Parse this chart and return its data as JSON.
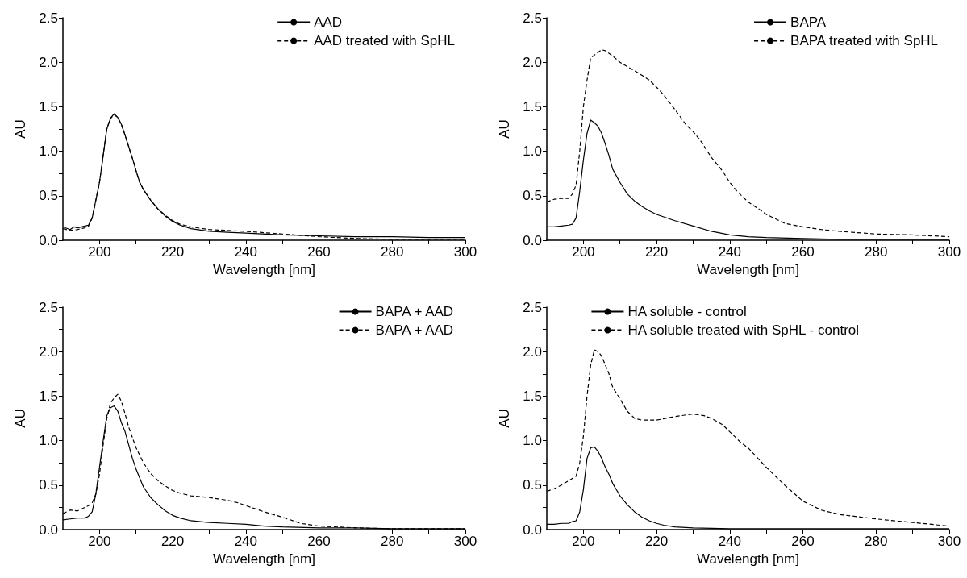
{
  "chart_data": [
    {
      "type": "line",
      "xlabel": "Wavelength [nm]",
      "ylabel": "AU",
      "xlim": [
        190,
        300
      ],
      "ylim": [
        0,
        2.5
      ],
      "xticks": [
        200,
        {
          "value": 210,
          "label": null
        },
        220,
        {
          "value": 230,
          "label": null
        },
        240,
        {
          "value": 250,
          "label": null
        },
        260,
        {
          "value": 270,
          "label": null
        },
        280,
        {
          "value": 290,
          "label": null
        },
        300
      ],
      "yticks": [
        {
          "value": 0,
          "label": "0.0"
        },
        {
          "value": 0.25,
          "label": null
        },
        {
          "value": 0.5,
          "label": "0.5"
        },
        {
          "value": 0.75,
          "label": null
        },
        {
          "value": 1,
          "label": "1.0"
        },
        {
          "value": 1.25,
          "label": null
        },
        {
          "value": 1.5,
          "label": "1.5"
        },
        {
          "value": 1.75,
          "label": null
        },
        {
          "value": 2,
          "label": "2.0"
        },
        {
          "value": 2.25,
          "label": null
        },
        {
          "value": 2.5,
          "label": "2.5"
        }
      ],
      "grid": false,
      "legend": "top right",
      "marker": "none",
      "series": [
        {
          "name": "AAD",
          "color": "#000000",
          "line_style": "solid",
          "x": [
            190,
            192,
            193,
            194,
            196,
            197,
            198,
            199,
            200,
            201,
            202,
            203,
            204,
            205,
            206,
            207,
            208,
            209,
            210,
            211,
            212,
            214,
            216,
            218,
            220,
            222,
            225,
            230,
            235,
            240,
            250,
            260,
            270,
            280,
            290,
            300
          ],
          "values": [
            0.15,
            0.12,
            0.15,
            0.14,
            0.16,
            0.17,
            0.25,
            0.45,
            0.65,
            0.95,
            1.25,
            1.37,
            1.42,
            1.38,
            1.3,
            1.18,
            1.05,
            0.92,
            0.78,
            0.65,
            0.57,
            0.45,
            0.35,
            0.27,
            0.21,
            0.17,
            0.13,
            0.1,
            0.09,
            0.08,
            0.06,
            0.05,
            0.04,
            0.04,
            0.03,
            0.03
          ]
        },
        {
          "name": "AAD treated with SpHL",
          "color": "#000000",
          "line_style": "dashed",
          "x": [
            190,
            192,
            194,
            196,
            197,
            198,
            199,
            200,
            201,
            202,
            203,
            204,
            205,
            206,
            207,
            208,
            209,
            210,
            211,
            212,
            214,
            216,
            218,
            220,
            222,
            225,
            230,
            240,
            250,
            260,
            270,
            280,
            290,
            300
          ],
          "values": [
            0.13,
            0.11,
            0.12,
            0.14,
            0.16,
            0.25,
            0.45,
            0.65,
            0.95,
            1.25,
            1.37,
            1.41,
            1.38,
            1.3,
            1.18,
            1.05,
            0.92,
            0.78,
            0.65,
            0.57,
            0.45,
            0.35,
            0.28,
            0.22,
            0.18,
            0.15,
            0.12,
            0.1,
            0.07,
            0.04,
            0.02,
            0.01,
            0.01,
            0.01
          ]
        }
      ]
    },
    {
      "type": "line",
      "xlabel": "Wavelength [nm]",
      "ylabel": "AU",
      "xlim": [
        190,
        300
      ],
      "ylim": [
        0,
        2.5
      ],
      "xticks": [
        200,
        {
          "value": 210,
          "label": null
        },
        220,
        {
          "value": 230,
          "label": null
        },
        240,
        {
          "value": 250,
          "label": null
        },
        260,
        {
          "value": 270,
          "label": null
        },
        280,
        {
          "value": 290,
          "label": null
        },
        300
      ],
      "yticks": [
        {
          "value": 0,
          "label": "0.0"
        },
        {
          "value": 0.25,
          "label": null
        },
        {
          "value": 0.5,
          "label": "0.5"
        },
        {
          "value": 0.75,
          "label": null
        },
        {
          "value": 1,
          "label": "1.0"
        },
        {
          "value": 1.25,
          "label": null
        },
        {
          "value": 1.5,
          "label": "1.5"
        },
        {
          "value": 1.75,
          "label": null
        },
        {
          "value": 2,
          "label": "2.0"
        },
        {
          "value": 2.25,
          "label": null
        },
        {
          "value": 2.5,
          "label": "2.5"
        }
      ],
      "grid": false,
      "legend": "top right",
      "marker": "none",
      "series": [
        {
          "name": "BAPA",
          "color": "#000000",
          "line_style": "solid",
          "x": [
            190,
            192,
            194,
            196,
            197,
            198,
            199,
            200,
            201,
            202,
            203,
            204,
            205,
            206,
            207,
            208,
            210,
            212,
            214,
            216,
            218,
            220,
            225,
            230,
            235,
            240,
            245,
            250,
            260,
            270,
            280,
            290,
            300
          ],
          "values": [
            0.15,
            0.15,
            0.16,
            0.17,
            0.18,
            0.25,
            0.55,
            0.9,
            1.2,
            1.35,
            1.32,
            1.28,
            1.2,
            1.08,
            0.95,
            0.8,
            0.65,
            0.52,
            0.44,
            0.38,
            0.33,
            0.29,
            0.22,
            0.16,
            0.1,
            0.06,
            0.04,
            0.03,
            0.02,
            0.01,
            0.01,
            0.01,
            0.01
          ]
        },
        {
          "name": "BAPA treated with SpHL",
          "color": "#000000",
          "line_style": "dashed",
          "x": [
            190,
            192,
            194,
            196,
            197,
            198,
            199,
            200,
            201,
            202,
            203,
            204,
            205,
            206,
            208,
            210,
            212,
            215,
            218,
            220,
            222,
            225,
            228,
            230,
            232,
            235,
            238,
            240,
            242,
            245,
            248,
            250,
            255,
            260,
            265,
            270,
            280,
            290,
            300
          ],
          "values": [
            0.43,
            0.46,
            0.47,
            0.47,
            0.52,
            0.62,
            1.0,
            1.5,
            1.8,
            2.05,
            2.08,
            2.11,
            2.14,
            2.13,
            2.07,
            2.0,
            1.95,
            1.88,
            1.8,
            1.72,
            1.63,
            1.47,
            1.3,
            1.22,
            1.12,
            0.93,
            0.78,
            0.65,
            0.55,
            0.43,
            0.35,
            0.29,
            0.19,
            0.15,
            0.12,
            0.1,
            0.07,
            0.06,
            0.04
          ]
        }
      ]
    },
    {
      "type": "line",
      "xlabel": "Wavelength [nm]",
      "ylabel": "AU",
      "xlim": [
        190,
        300
      ],
      "ylim": [
        0,
        2.5
      ],
      "xticks": [
        200,
        {
          "value": 210,
          "label": null
        },
        220,
        {
          "value": 230,
          "label": null
        },
        240,
        {
          "value": 250,
          "label": null
        },
        260,
        {
          "value": 270,
          "label": null
        },
        280,
        {
          "value": 290,
          "label": null
        },
        300
      ],
      "yticks": [
        {
          "value": 0,
          "label": "0.0"
        },
        {
          "value": 0.25,
          "label": null
        },
        {
          "value": 0.5,
          "label": "0.5"
        },
        {
          "value": 0.75,
          "label": null
        },
        {
          "value": 1,
          "label": "1.0"
        },
        {
          "value": 1.25,
          "label": null
        },
        {
          "value": 1.5,
          "label": "1.5"
        },
        {
          "value": 1.75,
          "label": null
        },
        {
          "value": 2,
          "label": "2.0"
        },
        {
          "value": 2.25,
          "label": null
        },
        {
          "value": 2.5,
          "label": "2.5"
        }
      ],
      "grid": false,
      "legend": "top right",
      "marker": "none",
      "series": [
        {
          "name": "BAPA + AAD",
          "color": "#000000",
          "line_style": "solid",
          "x": [
            190,
            192,
            194,
            196,
            197,
            198,
            199,
            200,
            201,
            202,
            203,
            204,
            205,
            206,
            207,
            208,
            209,
            210,
            212,
            214,
            216,
            218,
            220,
            222,
            225,
            230,
            235,
            240,
            245,
            250,
            260,
            270,
            280,
            290,
            300
          ],
          "values": [
            0.11,
            0.12,
            0.13,
            0.13,
            0.15,
            0.2,
            0.4,
            0.7,
            1.0,
            1.28,
            1.37,
            1.39,
            1.33,
            1.2,
            1.1,
            0.95,
            0.8,
            0.68,
            0.48,
            0.36,
            0.28,
            0.21,
            0.16,
            0.13,
            0.1,
            0.08,
            0.07,
            0.06,
            0.04,
            0.03,
            0.02,
            0.02,
            0.01,
            0.01,
            0.01
          ]
        },
        {
          "name": "BAPA + AAD",
          "color": "#000000",
          "line_style": "dashed",
          "x": [
            190,
            192,
            194,
            196,
            197,
            198,
            199,
            200,
            201,
            202,
            203,
            204,
            205,
            206,
            207,
            208,
            210,
            212,
            214,
            216,
            218,
            220,
            222,
            225,
            230,
            235,
            238,
            240,
            245,
            250,
            255,
            260,
            270,
            280,
            290,
            300
          ],
          "values": [
            0.18,
            0.22,
            0.21,
            0.25,
            0.27,
            0.3,
            0.4,
            0.62,
            0.95,
            1.25,
            1.42,
            1.48,
            1.52,
            1.44,
            1.3,
            1.15,
            0.92,
            0.75,
            0.63,
            0.55,
            0.49,
            0.44,
            0.41,
            0.38,
            0.36,
            0.33,
            0.3,
            0.27,
            0.2,
            0.14,
            0.07,
            0.04,
            0.02,
            0.01,
            0.01,
            0.01
          ]
        }
      ]
    },
    {
      "type": "line",
      "xlabel": "Wavelength [nm]",
      "ylabel": "AU",
      "xlim": [
        190,
        300
      ],
      "ylim": [
        0,
        2.5
      ],
      "xticks": [
        200,
        {
          "value": 210,
          "label": null
        },
        220,
        {
          "value": 230,
          "label": null
        },
        240,
        {
          "value": 250,
          "label": null
        },
        260,
        {
          "value": 270,
          "label": null
        },
        280,
        {
          "value": 290,
          "label": null
        },
        300
      ],
      "yticks": [
        {
          "value": 0,
          "label": "0.0"
        },
        {
          "value": 0.25,
          "label": null
        },
        {
          "value": 0.5,
          "label": "0.5"
        },
        {
          "value": 0.75,
          "label": null
        },
        {
          "value": 1,
          "label": "1.0"
        },
        {
          "value": 1.25,
          "label": null
        },
        {
          "value": 1.5,
          "label": "1.5"
        },
        {
          "value": 1.75,
          "label": null
        },
        {
          "value": 2,
          "label": "2.0"
        },
        {
          "value": 2.25,
          "label": null
        },
        {
          "value": 2.5,
          "label": "2.5"
        }
      ],
      "grid": false,
      "legend": "top",
      "marker": "none",
      "series": [
        {
          "name": "HA soluble - control",
          "color": "#000000",
          "line_style": "solid",
          "x": [
            190,
            192,
            194,
            196,
            197,
            198,
            199,
            200,
            201,
            202,
            203,
            204,
            205,
            206,
            207,
            208,
            210,
            212,
            214,
            216,
            218,
            220,
            222,
            225,
            230,
            240,
            250,
            260,
            280,
            300
          ],
          "values": [
            0.06,
            0.06,
            0.07,
            0.07,
            0.09,
            0.1,
            0.2,
            0.45,
            0.8,
            0.92,
            0.93,
            0.88,
            0.8,
            0.7,
            0.62,
            0.52,
            0.38,
            0.28,
            0.2,
            0.14,
            0.1,
            0.07,
            0.05,
            0.03,
            0.02,
            0.01,
            0.01,
            0.01,
            0.01,
            0.01
          ]
        },
        {
          "name": "HA soluble treated with SpHL - control",
          "color": "#000000",
          "line_style": "dashed",
          "x": [
            190,
            192,
            194,
            196,
            198,
            199,
            200,
            201,
            202,
            203,
            204,
            205,
            206,
            207,
            208,
            210,
            212,
            214,
            216,
            218,
            220,
            225,
            230,
            233,
            235,
            238,
            240,
            243,
            245,
            250,
            255,
            260,
            265,
            270,
            280,
            290,
            300
          ],
          "values": [
            0.43,
            0.46,
            0.5,
            0.55,
            0.6,
            0.75,
            1.05,
            1.5,
            1.85,
            2.02,
            2.0,
            1.95,
            1.85,
            1.75,
            1.6,
            1.47,
            1.33,
            1.25,
            1.23,
            1.23,
            1.23,
            1.27,
            1.3,
            1.28,
            1.25,
            1.18,
            1.1,
            0.98,
            0.92,
            0.7,
            0.5,
            0.32,
            0.22,
            0.17,
            0.12,
            0.08,
            0.04
          ]
        }
      ]
    }
  ]
}
